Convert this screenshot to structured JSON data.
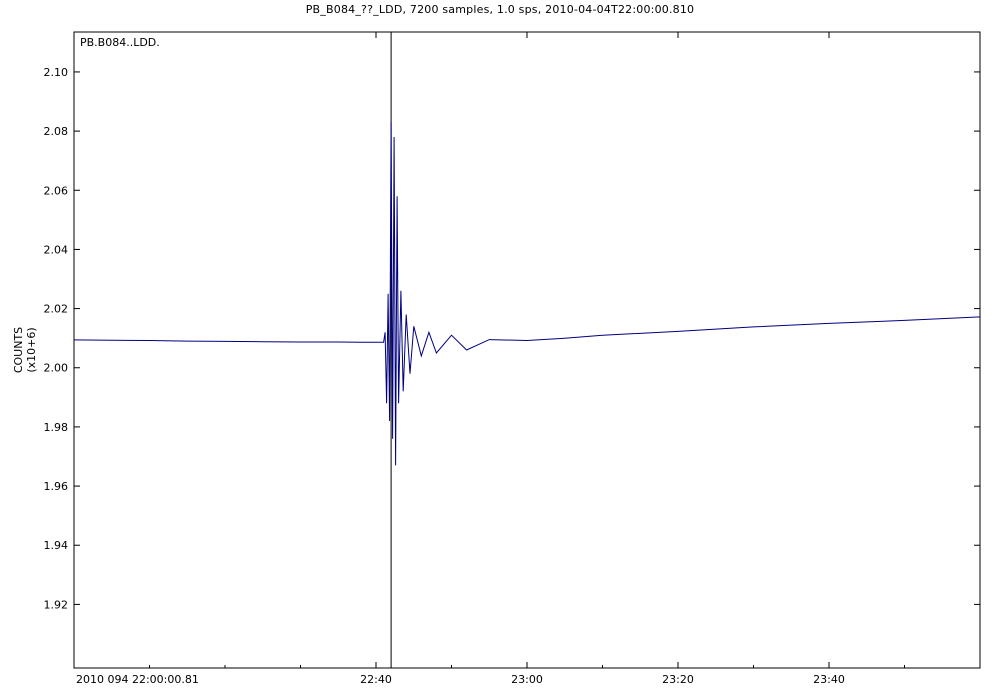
{
  "header": {
    "title": "PB_B084_??_LDD, 7200 samples, 1.0 sps, 2010-04-04T22:00:00.810"
  },
  "chart_data": {
    "type": "line",
    "station_label": "PB.B084..LDD.",
    "ylabel": "COUNTS",
    "ylabel_scale": "(x10+6)",
    "y_ticks": [
      "1.92",
      "1.94",
      "1.96",
      "1.98",
      "2.00",
      "2.02",
      "2.04",
      "2.06",
      "2.08",
      "2.10"
    ],
    "ylim": [
      1.8985,
      2.1135
    ],
    "x_start_label": "2010 094 22:00:00.81",
    "x_ticks": [
      {
        "label": "22:40",
        "minutes": 40
      },
      {
        "label": "23:00",
        "minutes": 60
      },
      {
        "label": "23:20",
        "minutes": 80
      },
      {
        "label": "23:40",
        "minutes": 100
      }
    ],
    "xlim_minutes": [
      0,
      120
    ],
    "event_marker_minutes": 42.0,
    "grid": false,
    "series": [
      {
        "color": "#000080",
        "x_minutes": [
          0,
          5,
          10,
          15,
          20,
          25,
          30,
          35,
          38,
          41.0,
          41.2,
          41.4,
          41.6,
          41.8,
          42.0,
          42.2,
          42.4,
          42.6,
          42.8,
          43.0,
          43.3,
          43.6,
          44.0,
          44.5,
          45.0,
          46.0,
          47.0,
          48.0,
          50.0,
          52.0,
          55.0,
          60.0,
          65.0,
          70.0,
          80.0,
          90.0,
          100.0,
          110.0,
          120.0
        ],
        "values": [
          2.0094,
          2.0093,
          2.0092,
          2.009,
          2.0089,
          2.0088,
          2.0087,
          2.0087,
          2.0086,
          2.0086,
          2.012,
          1.988,
          2.025,
          1.982,
          2.083,
          1.976,
          2.078,
          1.967,
          2.058,
          1.988,
          2.026,
          1.992,
          2.018,
          1.998,
          2.014,
          2.004,
          2.012,
          2.005,
          2.011,
          2.006,
          2.0095,
          2.0092,
          2.01,
          2.011,
          2.0123,
          2.0138,
          2.015,
          2.016,
          2.0172
        ]
      }
    ]
  }
}
